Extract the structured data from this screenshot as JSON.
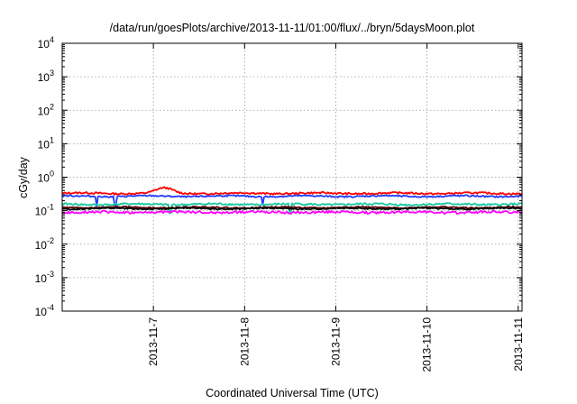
{
  "chart_data": {
    "type": "line",
    "title": "/data/run/goesPlots/archive/2013-11-11/01:00/flux/../bryn/5daysMoon.plot",
    "xlabel": "Coordinated Universal Time (UTC)",
    "ylabel": "cGy/day",
    "yscale": "log",
    "ylim_exp": [
      -4,
      4
    ],
    "ytick_labels": [
      {
        "base": "10",
        "exp": "-4"
      },
      {
        "base": "10",
        "exp": "-3"
      },
      {
        "base": "10",
        "exp": "-2"
      },
      {
        "base": "10",
        "exp": "-1"
      },
      {
        "base": "10",
        "exp": "0"
      },
      {
        "base": "10",
        "exp": "1"
      },
      {
        "base": "10",
        "exp": "2"
      },
      {
        "base": "10",
        "exp": "3"
      },
      {
        "base": "10",
        "exp": "4"
      }
    ],
    "xlim": [
      "2013-11-06T00:00",
      "2013-11-11T01:00"
    ],
    "xticks": [
      "2013-11-7",
      "2013-11-8",
      "2013-11-9",
      "2013-11-10",
      "2013-11-11"
    ],
    "grid": true,
    "series": [
      {
        "color": "#ff0000",
        "level": 0.33,
        "jitter": 0.06,
        "bump": {
          "at": 1.12,
          "width": 0.12,
          "gain": 0.42
        }
      },
      {
        "color": "#1f3cff",
        "level": 0.27,
        "jitter": 0.05,
        "dips": [
          0.38,
          0.58,
          2.2
        ]
      },
      {
        "color": "#19c8a0",
        "level": 0.155,
        "jitter": 0.07,
        "dips": [
          1.18,
          2.5
        ]
      },
      {
        "color": "#5a0000",
        "level": 0.125,
        "jitter": 0.04
      },
      {
        "color": "#000000",
        "level": 0.115,
        "jitter": 0.04
      },
      {
        "color": "#ff00ff",
        "level": 0.09,
        "jitter": 0.08
      }
    ]
  }
}
